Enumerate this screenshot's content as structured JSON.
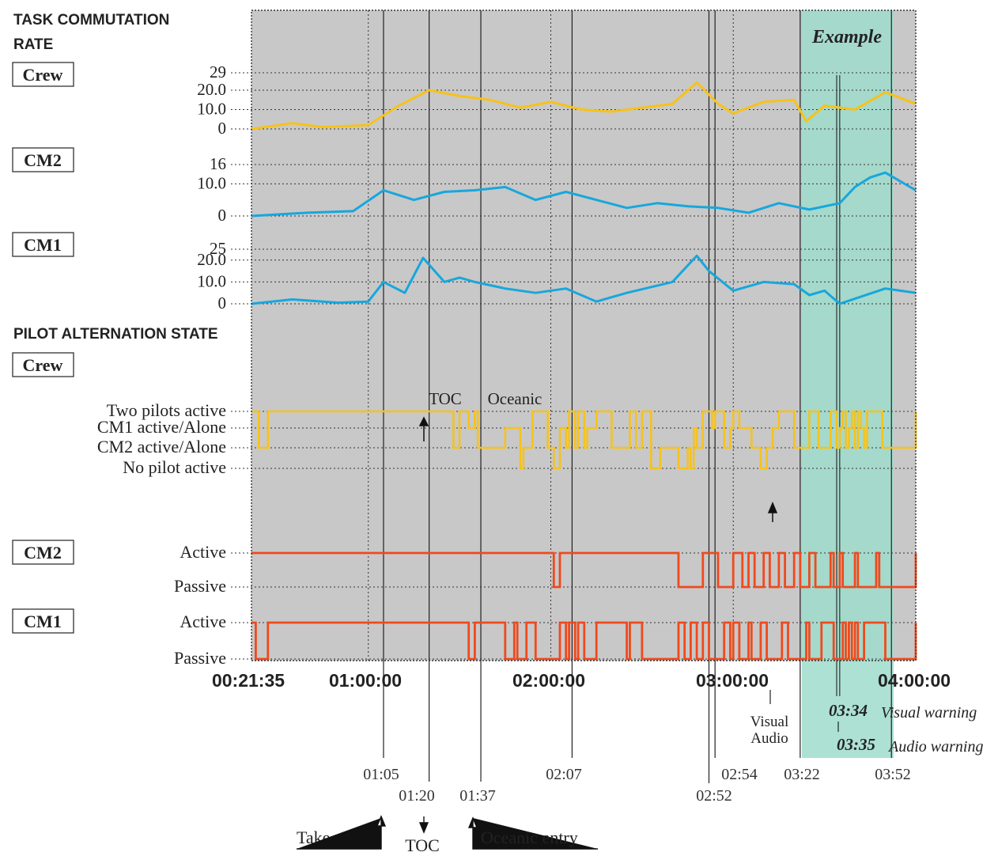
{
  "headings": {
    "rate_line1": "TASK COMMUTATION",
    "rate_line2": "RATE",
    "alternation": "PILOT ALTERNATION STATE"
  },
  "row_labels": {
    "crew_rate": "Crew",
    "cm2_rate": "CM2",
    "cm1_rate": "CM1",
    "crew_state": "Crew",
    "cm2_state": "CM2",
    "cm1_state": "CM1"
  },
  "example_label": "Example",
  "colors": {
    "crew": "#f7c21a",
    "cm_rate": "#17a7dc",
    "cm_state": "#f0491d",
    "plot_bg": "#c8c8c8",
    "example_band": "#9fdccb"
  },
  "chart_data": {
    "type": "line",
    "x_range": [
      "00:21:35",
      "04:00:00"
    ],
    "x_tick_labels": [
      "00:21:35",
      "01:00:00",
      "02:00:00",
      "03:00:00",
      "04:00:00"
    ],
    "events": [
      {
        "time": "01:05"
      },
      {
        "time": "01:20",
        "label": "TOC"
      },
      {
        "time": "01:37",
        "label": "Oceanic"
      },
      {
        "time": "02:07"
      },
      {
        "time": "02:52"
      },
      {
        "time": "02:54"
      },
      {
        "time": "03:22"
      },
      {
        "time": "03:52"
      }
    ],
    "below_axis_labels": {
      "takeoff": "Take-off",
      "toc": "TOC",
      "oceanic_entry": "Oceanic entry",
      "visual": "Visual",
      "audio": "Audio"
    },
    "warnings": [
      {
        "time": "03:34",
        "label": "Visual warning"
      },
      {
        "time": "03:35",
        "label": "Audio warning"
      }
    ],
    "example_window": [
      "03:22",
      "03:52"
    ],
    "task_commutation_rate": [
      {
        "name": "Crew",
        "y_ticks": [
          "29",
          "20.0",
          "10.0",
          "0"
        ],
        "y_range": [
          0,
          29
        ],
        "x_minutes": [
          21.6,
          35,
          45,
          60,
          70,
          80,
          90,
          100,
          110,
          120,
          130,
          140,
          150,
          160,
          168,
          175,
          180,
          190,
          200,
          204,
          210,
          220,
          230,
          240
        ],
        "values": [
          0,
          3,
          1,
          2,
          12,
          20,
          17,
          15,
          11,
          14,
          10,
          9,
          11,
          13,
          24,
          13,
          8,
          14,
          15,
          4,
          12,
          10,
          19,
          13
        ]
      },
      {
        "name": "CM2",
        "y_ticks": [
          "16",
          "10.0",
          "0"
        ],
        "y_range": [
          0,
          16
        ],
        "x_minutes": [
          21.6,
          40,
          55,
          65,
          75,
          85,
          95,
          105,
          115,
          125,
          135,
          145,
          155,
          165,
          175,
          185,
          195,
          205,
          215,
          220,
          225,
          230,
          240
        ],
        "values": [
          0,
          1,
          1.5,
          8,
          5,
          7.5,
          8,
          9,
          5,
          7.5,
          5,
          2.5,
          4,
          3,
          2.5,
          1,
          4,
          2,
          4,
          9,
          12,
          13.5,
          8
        ]
      },
      {
        "name": "CM1",
        "y_ticks": [
          "25",
          "20.0",
          "10.0",
          "0"
        ],
        "y_range": [
          0,
          25
        ],
        "x_minutes": [
          21.6,
          35,
          50,
          60,
          65,
          72,
          78,
          85,
          90,
          95,
          105,
          115,
          125,
          135,
          145,
          160,
          168,
          172,
          180,
          190,
          200,
          205,
          210,
          215,
          230,
          240
        ],
        "values": [
          0,
          2,
          0.5,
          1,
          10,
          5,
          21,
          10,
          12,
          10,
          7,
          5,
          7,
          1,
          5,
          10,
          22,
          15,
          6,
          10,
          9,
          4,
          6,
          0,
          7,
          5
        ]
      }
    ],
    "crew_alternation": {
      "levels": [
        "Two pilots active",
        "CM1 active/Alone",
        "CM2 active/Alone",
        "No pilot active"
      ],
      "x_minutes": [
        21.6,
        24,
        27,
        75,
        88,
        90,
        93,
        95,
        96,
        105,
        110,
        111,
        114,
        119,
        121,
        123,
        125,
        126,
        128,
        129,
        131,
        132,
        135,
        140,
        146,
        148,
        150,
        153,
        156,
        162,
        165,
        166,
        167,
        168,
        170,
        173,
        174,
        177,
        179,
        180,
        182,
        186,
        189,
        191,
        193,
        195,
        200,
        205,
        208,
        212,
        214,
        215,
        216,
        217,
        218,
        219,
        220,
        221,
        222,
        223,
        224,
        229,
        240
      ],
      "values": [
        0,
        2,
        0,
        0,
        2,
        0,
        1,
        0,
        2,
        1,
        3,
        2,
        0,
        2,
        3,
        1,
        2,
        0,
        2,
        0,
        2,
        1,
        0,
        2,
        0,
        2,
        0,
        3,
        2,
        3,
        2,
        3,
        1,
        2,
        0,
        1,
        0,
        2,
        1,
        0,
        1,
        2,
        3,
        2,
        1,
        0,
        2,
        0,
        2,
        0,
        2,
        1,
        0,
        2,
        1,
        0,
        2,
        0,
        1,
        2,
        0,
        2,
        0
      ]
    },
    "cm2_state": {
      "levels": [
        "Active",
        "Passive"
      ],
      "x_minutes": [
        21.6,
        121,
        123,
        162,
        170,
        175,
        180,
        183,
        185,
        187,
        190,
        192,
        195,
        197,
        200,
        202,
        205,
        207,
        212,
        213,
        215,
        216,
        220,
        221,
        227,
        228,
        240
      ],
      "values": [
        0,
        1,
        0,
        1,
        0,
        1,
        0,
        1,
        0,
        1,
        0,
        1,
        0,
        1,
        0,
        1,
        0,
        1,
        0,
        1,
        0,
        1,
        0,
        1,
        0,
        1,
        0
      ]
    },
    "cm1_state": {
      "levels": [
        "Active",
        "Passive"
      ],
      "x_minutes": [
        21.6,
        23,
        27,
        93,
        95,
        105,
        108,
        109,
        112,
        115,
        123,
        125,
        126,
        128,
        129,
        131,
        135,
        145,
        146,
        150,
        162,
        164,
        166,
        168,
        170,
        172,
        177,
        179,
        180,
        182,
        185,
        186,
        189,
        191,
        196,
        198,
        204,
        205,
        209,
        213,
        216,
        217,
        218,
        219,
        220,
        221,
        223,
        230,
        240
      ],
      "values": [
        0,
        1,
        0,
        1,
        0,
        1,
        0,
        1,
        0,
        1,
        0,
        1,
        0,
        1,
        0,
        1,
        0,
        1,
        0,
        1,
        0,
        1,
        0,
        1,
        0,
        1,
        0,
        1,
        0,
        1,
        0,
        1,
        0,
        1,
        0,
        1,
        0,
        1,
        0,
        1,
        0,
        1,
        0,
        1,
        0,
        1,
        0,
        1,
        0
      ]
    }
  }
}
